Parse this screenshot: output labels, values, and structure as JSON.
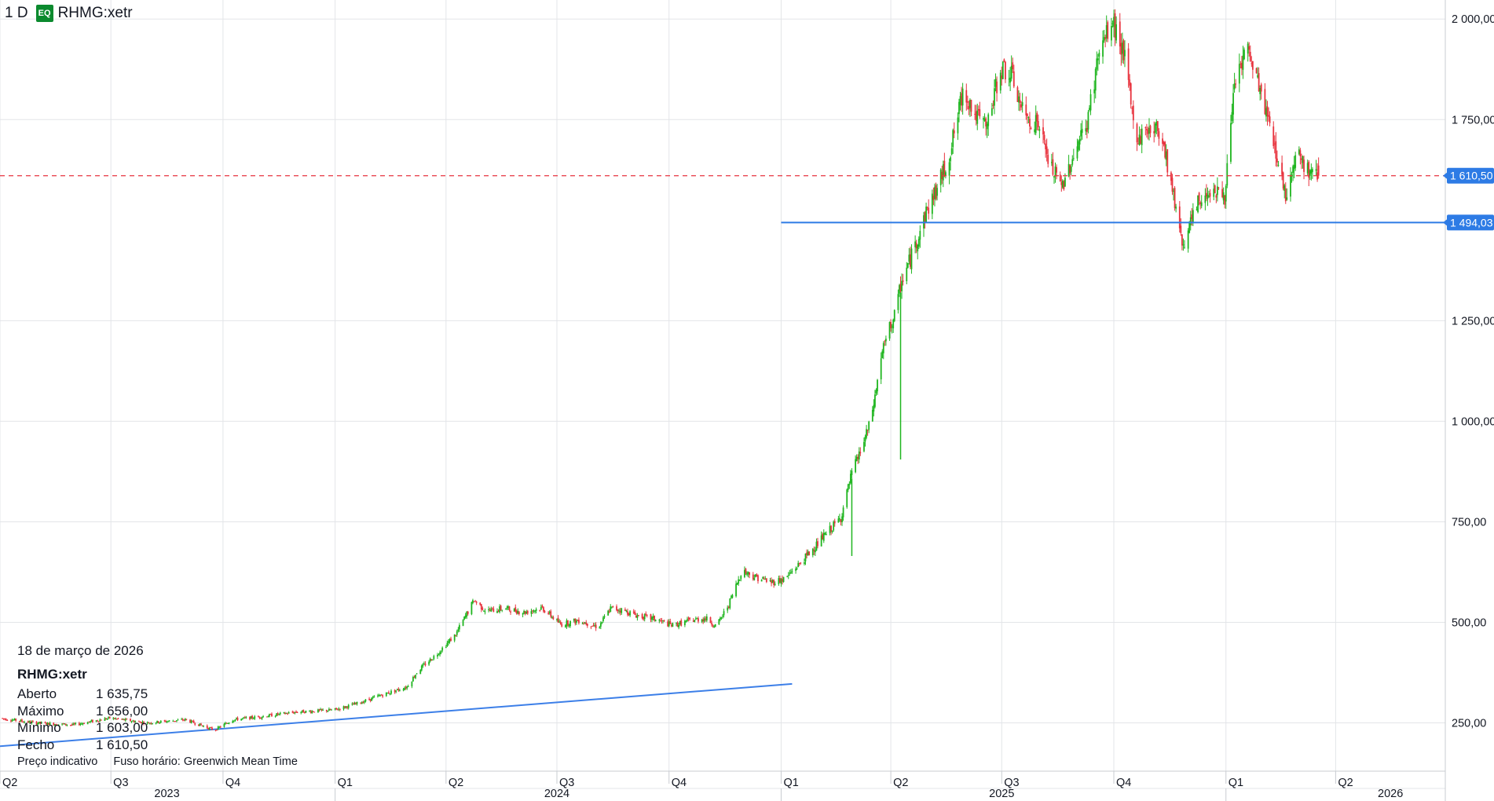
{
  "header": {
    "interval": "1 D",
    "badge": "EQ",
    "symbol": "RHMG:xetr"
  },
  "info_panel": {
    "date": "18 de março de 2026",
    "symbol": "RHMG:xetr",
    "rows": [
      {
        "label": "Aberto",
        "value": "1 635,75"
      },
      {
        "label": "Máximo",
        "value": "1 656,00"
      },
      {
        "label": "Mínimo",
        "value": "1 603,00"
      },
      {
        "label": "Fecho",
        "value": "1 610,50"
      }
    ]
  },
  "footer": {
    "price_note": "Preço indicativo",
    "timezone": "Fuso horário: Greenwich Mean Time"
  },
  "colors": {
    "up": "#1fb51f",
    "down": "#e8333e",
    "trendline": "#3c7fe8",
    "grid": "#e3e5e8",
    "last_price": "#e8333e",
    "tag_bg": "#2d7be5"
  },
  "chart_data": {
    "type": "candlestick",
    "symbol": "RHMG:xetr",
    "interval": "1 D",
    "y_ticks": [
      "250,00",
      "500,00",
      "750,00",
      "1 000,00",
      "1 250,00",
      "1 750,00",
      "2 000,00"
    ],
    "y_tick_values": [
      250,
      500,
      750,
      1000,
      1250,
      1750,
      2000
    ],
    "ylim": [
      130,
      2020
    ],
    "xlim": [
      "2023-04-01",
      "2026-06-30"
    ],
    "x_ticks": [
      {
        "label": "Q2",
        "date": "2023-04-01"
      },
      {
        "label": "Q3",
        "date": "2023-07-01"
      },
      {
        "label": "Q4",
        "date": "2023-10-01"
      },
      {
        "label": "Q1",
        "date": "2024-01-01"
      },
      {
        "label": "Q2",
        "date": "2024-04-01"
      },
      {
        "label": "Q3",
        "date": "2024-07-01"
      },
      {
        "label": "Q4",
        "date": "2024-10-01"
      },
      {
        "label": "Q1",
        "date": "2025-01-01"
      },
      {
        "label": "Q2",
        "date": "2025-04-01"
      },
      {
        "label": "Q3",
        "date": "2025-07-01"
      },
      {
        "label": "Q4",
        "date": "2025-10-01"
      },
      {
        "label": "Q1",
        "date": "2026-01-01"
      },
      {
        "label": "Q2",
        "date": "2026-04-01"
      }
    ],
    "year_labels": [
      {
        "label": "2023",
        "date": "2023-08-16"
      },
      {
        "label": "2024",
        "date": "2024-07-01"
      },
      {
        "label": "2025",
        "date": "2025-07-01"
      },
      {
        "label": "2026",
        "date": "2026-05-16"
      }
    ],
    "year_dividers": [
      "2024-01-01",
      "2025-01-01",
      "2026-01-01"
    ],
    "price_path": [
      [
        "2023-04-01",
        262
      ],
      [
        "2023-05-01",
        250
      ],
      [
        "2023-06-01",
        245
      ],
      [
        "2023-07-01",
        262
      ],
      [
        "2023-08-01",
        250
      ],
      [
        "2023-09-01",
        258
      ],
      [
        "2023-09-25",
        232
      ],
      [
        "2023-10-10",
        258
      ],
      [
        "2023-11-01",
        265
      ],
      [
        "2023-12-01",
        277
      ],
      [
        "2024-01-01",
        282
      ],
      [
        "2024-01-20",
        298
      ],
      [
        "2024-02-10",
        320
      ],
      [
        "2024-03-01",
        340
      ],
      [
        "2024-03-10",
        380
      ],
      [
        "2024-03-25",
        420
      ],
      [
        "2024-04-10",
        470
      ],
      [
        "2024-04-25",
        555
      ],
      [
        "2024-05-05",
        528
      ],
      [
        "2024-05-20",
        535
      ],
      [
        "2024-06-05",
        525
      ],
      [
        "2024-06-20",
        536
      ],
      [
        "2024-07-05",
        495
      ],
      [
        "2024-07-20",
        505
      ],
      [
        "2024-08-05",
        488
      ],
      [
        "2024-08-15",
        535
      ],
      [
        "2024-08-25",
        530
      ],
      [
        "2024-09-05",
        518
      ],
      [
        "2024-09-20",
        508
      ],
      [
        "2024-10-05",
        492
      ],
      [
        "2024-10-20",
        505
      ],
      [
        "2024-11-01",
        510
      ],
      [
        "2024-11-10",
        490
      ],
      [
        "2024-11-20",
        545
      ],
      [
        "2024-12-01",
        630
      ],
      [
        "2024-12-10",
        615
      ],
      [
        "2024-12-25",
        600
      ],
      [
        "2025-01-05",
        608
      ],
      [
        "2025-01-20",
        655
      ],
      [
        "2025-02-05",
        710
      ],
      [
        "2025-02-20",
        760
      ],
      [
        "2025-03-01",
        870
      ],
      [
        "2025-03-08",
        925
      ],
      [
        "2025-03-15",
        985
      ],
      [
        "2025-03-20",
        1060
      ],
      [
        "2025-03-25",
        1160
      ],
      [
        "2025-04-01",
        1230
      ],
      [
        "2025-04-07",
        1280
      ],
      [
        "2025-04-10",
        1340
      ],
      [
        "2025-04-20",
        1420
      ],
      [
        "2025-05-01",
        1520
      ],
      [
        "2025-05-10",
        1580
      ],
      [
        "2025-05-20",
        1660
      ],
      [
        "2025-06-01",
        1830
      ],
      [
        "2025-06-10",
        1760
      ],
      [
        "2025-06-20",
        1730
      ],
      [
        "2025-07-01",
        1880
      ],
      [
        "2025-07-10",
        1860
      ],
      [
        "2025-07-20",
        1760
      ],
      [
        "2025-08-01",
        1740
      ],
      [
        "2025-08-10",
        1640
      ],
      [
        "2025-08-20",
        1580
      ],
      [
        "2025-09-01",
        1680
      ],
      [
        "2025-09-10",
        1740
      ],
      [
        "2025-09-20",
        1920
      ],
      [
        "2025-10-01",
        1990
      ],
      [
        "2025-10-10",
        1920
      ],
      [
        "2025-10-20",
        1700
      ],
      [
        "2025-11-01",
        1730
      ],
      [
        "2025-11-10",
        1720
      ],
      [
        "2025-11-20",
        1560
      ],
      [
        "2025-11-28",
        1440
      ],
      [
        "2025-12-10",
        1540
      ],
      [
        "2025-12-20",
        1580
      ],
      [
        "2026-01-01",
        1560
      ],
      [
        "2026-01-10",
        1860
      ],
      [
        "2026-01-20",
        1920
      ],
      [
        "2026-02-01",
        1800
      ],
      [
        "2026-02-10",
        1700
      ],
      [
        "2026-02-20",
        1560
      ],
      [
        "2026-03-01",
        1680
      ],
      [
        "2026-03-10",
        1620
      ],
      [
        "2026-03-18",
        1610
      ]
    ],
    "spikes": [
      {
        "date": "2025-04-09",
        "low": 905
      },
      {
        "date": "2025-02-28",
        "low": 665
      },
      {
        "date": "2025-03-20",
        "low": 1060
      }
    ],
    "horizontal_lines": [
      {
        "value": 1610.5,
        "label": "1 610,50",
        "style": "dashed",
        "color": "#e8333e",
        "start": "2023-04-01"
      },
      {
        "value": 1494.03,
        "label": "1 494,03",
        "style": "solid",
        "color": "#2d7be5",
        "start": "2025-01-01"
      }
    ],
    "trendline": {
      "from": [
        "2023-04-01",
        192
      ],
      "to": [
        "2025-01-10",
        347
      ]
    },
    "last_bar": {
      "date": "2026-03-18",
      "open": 1635.75,
      "high": 1656.0,
      "low": 1603.0,
      "close": 1610.5
    }
  }
}
